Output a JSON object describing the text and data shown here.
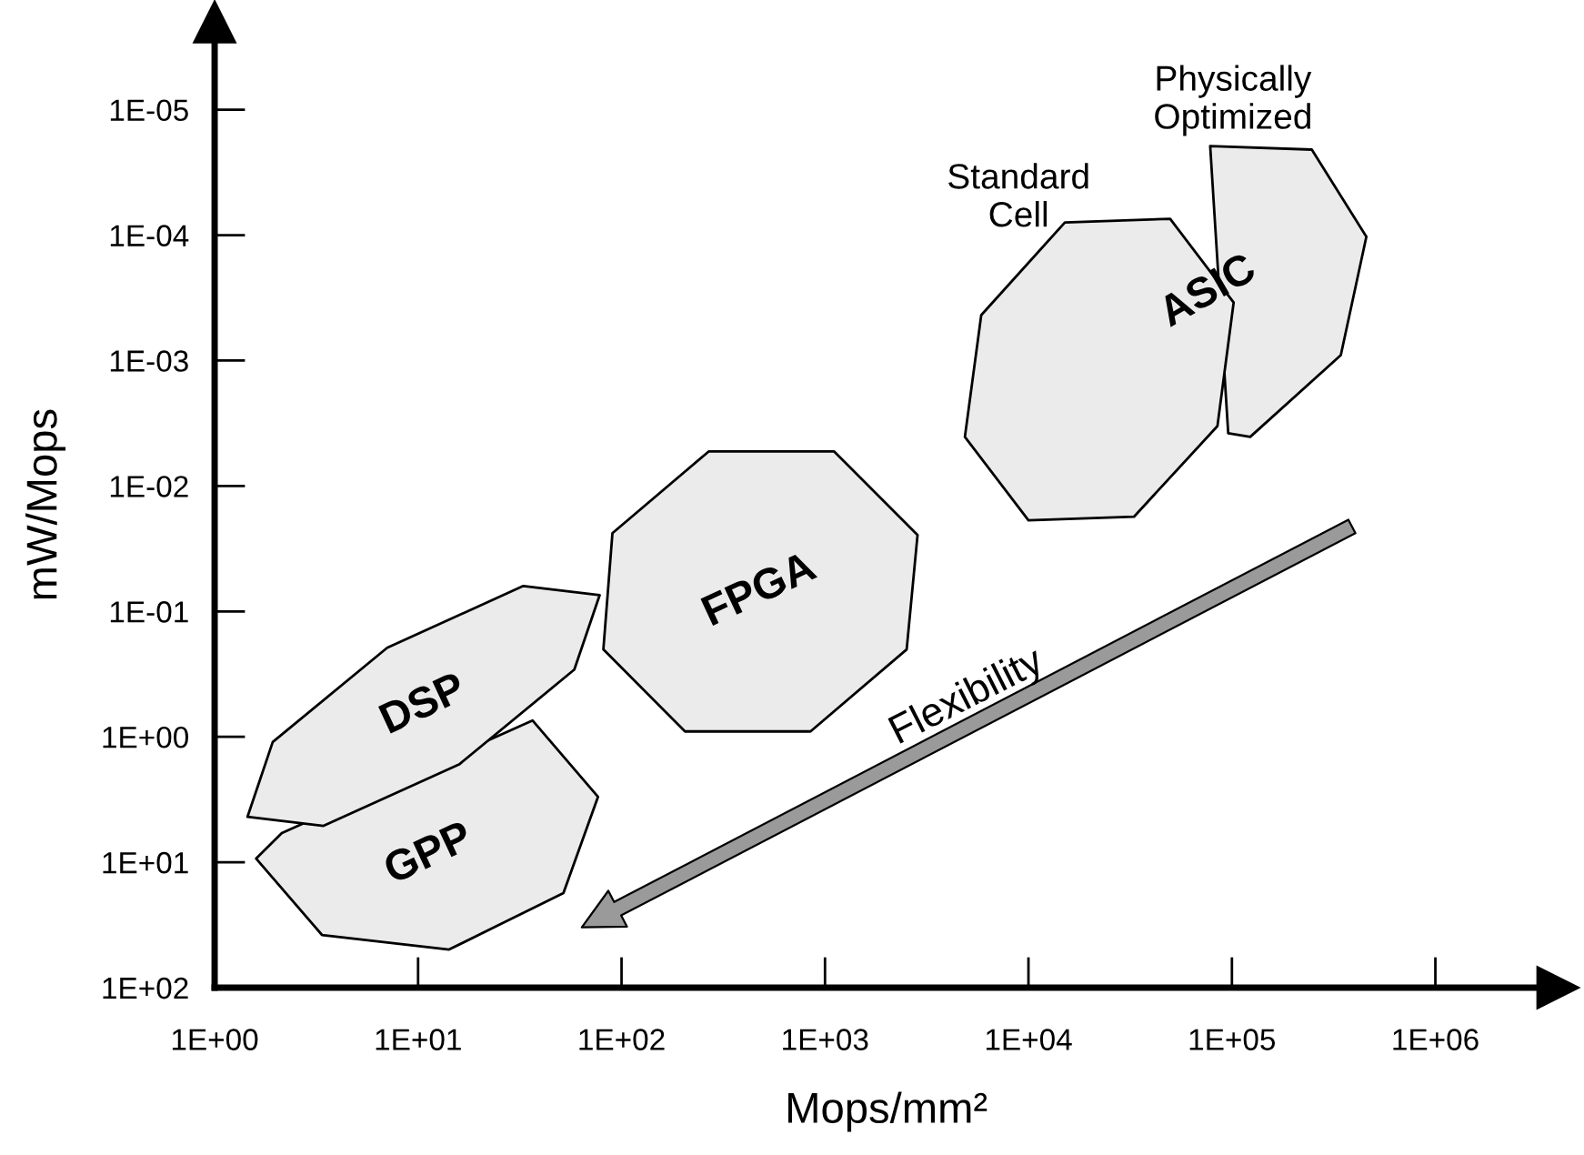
{
  "chart_data": {
    "type": "area",
    "xlabel": "Mops/mm²",
    "ylabel": "mW/Mops",
    "log": "xy",
    "grid": false,
    "legend": false,
    "xlim": [
      1,
      4000000
    ],
    "ylim": [
      100,
      2e-06
    ],
    "xticks": [
      {
        "value": 1,
        "label": "1E+00"
      },
      {
        "value": 10,
        "label": "1E+01"
      },
      {
        "value": 100,
        "label": "1E+02"
      },
      {
        "value": 1000,
        "label": "1E+03"
      },
      {
        "value": 10000,
        "label": "1E+04"
      },
      {
        "value": 100000,
        "label": "1E+05"
      },
      {
        "value": 1000000,
        "label": "1E+06"
      }
    ],
    "yticks": [
      {
        "value": 100,
        "label": "1E+02"
      },
      {
        "value": 10,
        "label": "1E+01"
      },
      {
        "value": 1,
        "label": "1E+00"
      },
      {
        "value": 0.1,
        "label": "1E-01"
      },
      {
        "value": 0.01,
        "label": "1E-02"
      },
      {
        "value": 0.001,
        "label": "1E-03"
      },
      {
        "value": 0.0001,
        "label": "1E-04"
      },
      {
        "value": 1e-05,
        "label": "1E-05"
      }
    ],
    "series": [
      {
        "name": "GPP",
        "color": "#ebebeb",
        "x": [
          76.6,
          51.8,
          14.2,
          3.37,
          1.6,
          2.14,
          36.5
        ],
        "values": [
          3.01,
          17.6,
          49.7,
          38,
          9.35,
          5.86,
          0.741
        ]
      },
      {
        "name": "DSP",
        "color": "#ebebeb",
        "x": [
          78.1,
          58.6,
          16.0,
          3.43,
          1.45,
          1.93,
          7.05,
          32.9
        ],
        "values": [
          0.0741,
          0.291,
          1.65,
          5.13,
          4.35,
          1.1,
          0.195,
          0.0627
        ]
      },
      {
        "name": "FPGA",
        "color": "#ebebeb",
        "x": [
          2850,
          2520,
          849,
          205,
          81.4,
          90.2,
          268,
          1110
        ],
        "values": [
          0.0246,
          0.201,
          0.906,
          0.906,
          0.201,
          0.0238,
          0.00531,
          0.00531
        ]
      },
      {
        "name": "Physically\nOptimized",
        "color": "#ebebeb",
        "x": [
          247000,
          458000,
          343000,
          123000,
          95900,
          78200
        ],
        "values": [
          2.08e-05,
          0.000103,
          0.000906,
          0.00406,
          0.0038,
          1.95e-05
        ]
      },
      {
        "name": "Standard\nCell",
        "color": "#ebebeb",
        "x": [
          49700,
          102000,
          84900,
          33000,
          10000,
          4870,
          5860,
          15100
        ],
        "values": [
          7.41e-05,
          0.000344,
          0.00333,
          0.0176,
          0.0188,
          0.00406,
          0.000434,
          7.92e-05
        ]
      }
    ],
    "annotations": [
      "ASIC",
      "Flexibility"
    ]
  }
}
